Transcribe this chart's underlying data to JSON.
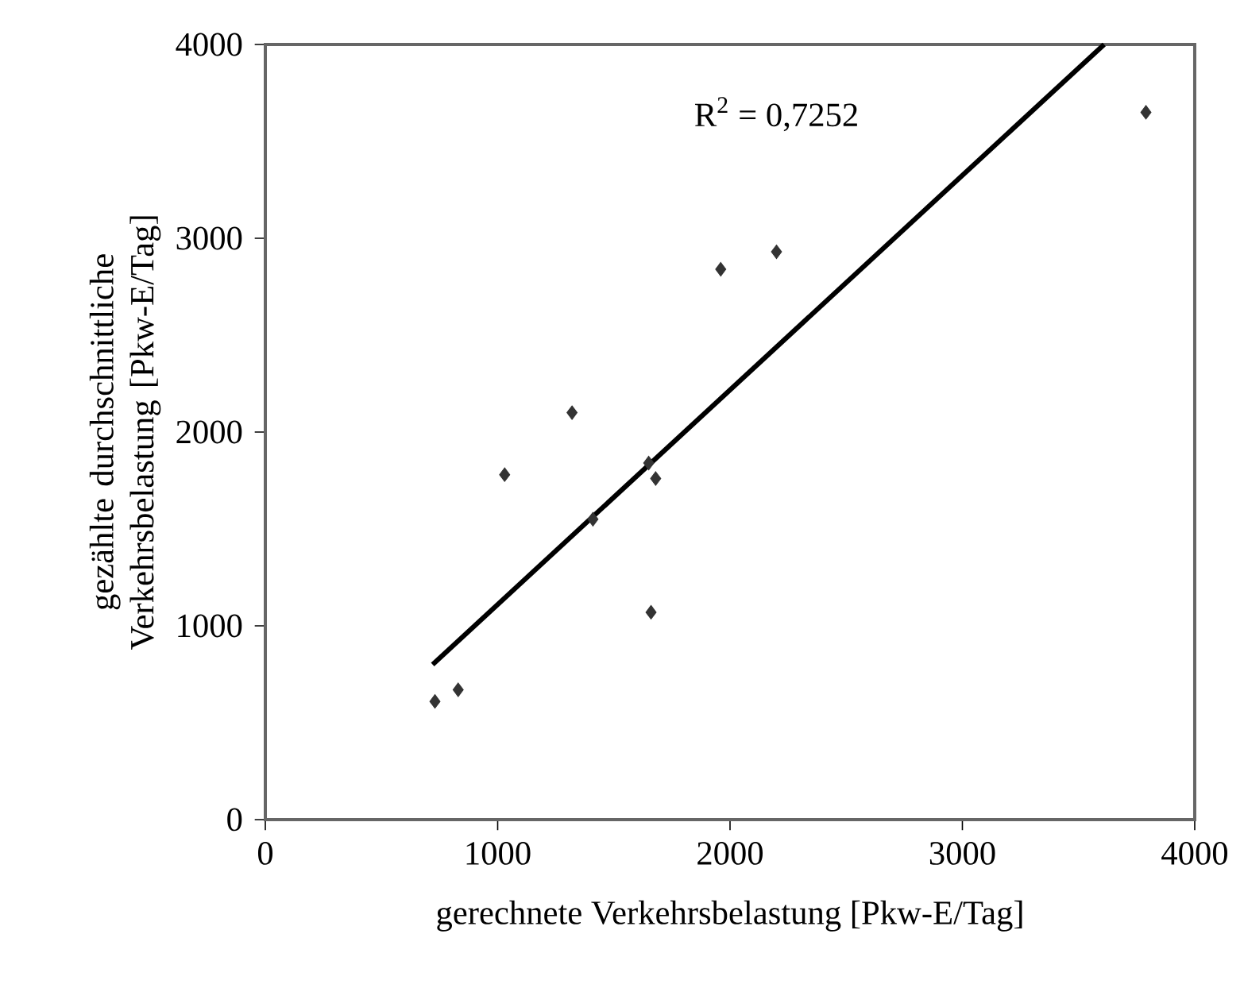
{
  "chart_data": {
    "type": "scatter",
    "xlabel": "gerechnete Verkehrsbelastung [Pkw-E/Tag]",
    "ylabel": "gezählte durchschnittliche Verkehrsbelastung [Pkw-E/Tag]",
    "annotations": [
      "R$^{2}$ = 0,7252"
    ],
    "xlim": [
      0,
      4000
    ],
    "ylim": [
      0,
      4000
    ],
    "xticks": [
      0,
      1000,
      2000,
      3000,
      4000
    ],
    "yticks": [
      0,
      1000,
      2000,
      3000,
      4000
    ],
    "grid": false,
    "series": [
      {
        "color": "#333333",
        "marker": "diamond",
        "x": [
          730,
          830,
          1030,
          1320,
          1410,
          1650,
          1680,
          1660,
          1960,
          2200,
          3790
        ],
        "values": [
          610,
          670,
          1780,
          2100,
          1550,
          1840,
          1760,
          1070,
          2840,
          2930,
          3650
        ]
      },
      {
        "type": "line",
        "color": "#000000",
        "marker": "none",
        "line_style": "solid",
        "x": [
          720,
          3610
        ],
        "values": [
          800,
          4000
        ]
      }
    ]
  }
}
